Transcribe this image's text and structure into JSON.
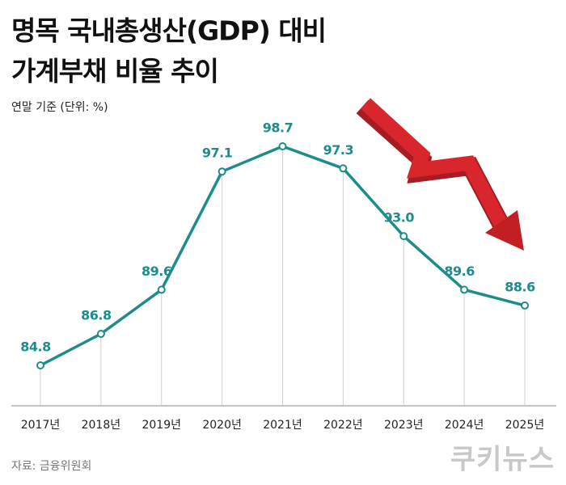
{
  "chart_data": {
    "type": "line",
    "title": "명목 국내총생산(GDP) 대비",
    "title_line2": "가계부채 비율 추이",
    "subtitle": "연말 기준 (단위: %)",
    "categories": [
      "2017년",
      "2018년",
      "2019년",
      "2020년",
      "2021년",
      "2022년",
      "2023년",
      "2024년",
      "2025년"
    ],
    "values": [
      84.8,
      86.8,
      89.6,
      97.1,
      98.7,
      97.3,
      93.0,
      89.6,
      88.6
    ],
    "value_labels": [
      "84.8",
      "86.8",
      "89.6",
      "97.1",
      "98.7",
      "97.3",
      "93.0",
      "89.6",
      "88.6"
    ],
    "color": "#1f8c8c"
  },
  "source": "자료: 금융위원회",
  "brand": "쿠키뉴스"
}
